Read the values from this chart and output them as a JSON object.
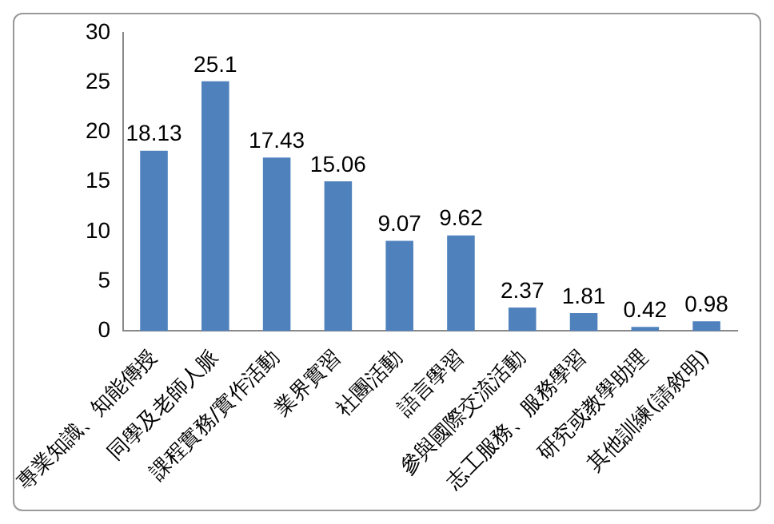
{
  "chart_data": {
    "type": "bar",
    "categories": [
      "專業知識、知能傳授",
      "同學及老師人脈",
      "課程實務/實作活動",
      "業界實習",
      "社團活動",
      "語言學習",
      "參與國際交流活動",
      "志工服務、服務學習",
      "研究或教學助理",
      "其他訓練(請敘明)"
    ],
    "values": [
      18.13,
      25.1,
      17.43,
      15.06,
      9.07,
      9.62,
      2.37,
      1.81,
      0.42,
      0.98
    ],
    "color": "#4f81bd",
    "ylim": [
      0,
      30
    ],
    "yticks": [
      0,
      5,
      10,
      15,
      20,
      25,
      30
    ],
    "grid": false,
    "legend": false,
    "data_labels": true
  }
}
